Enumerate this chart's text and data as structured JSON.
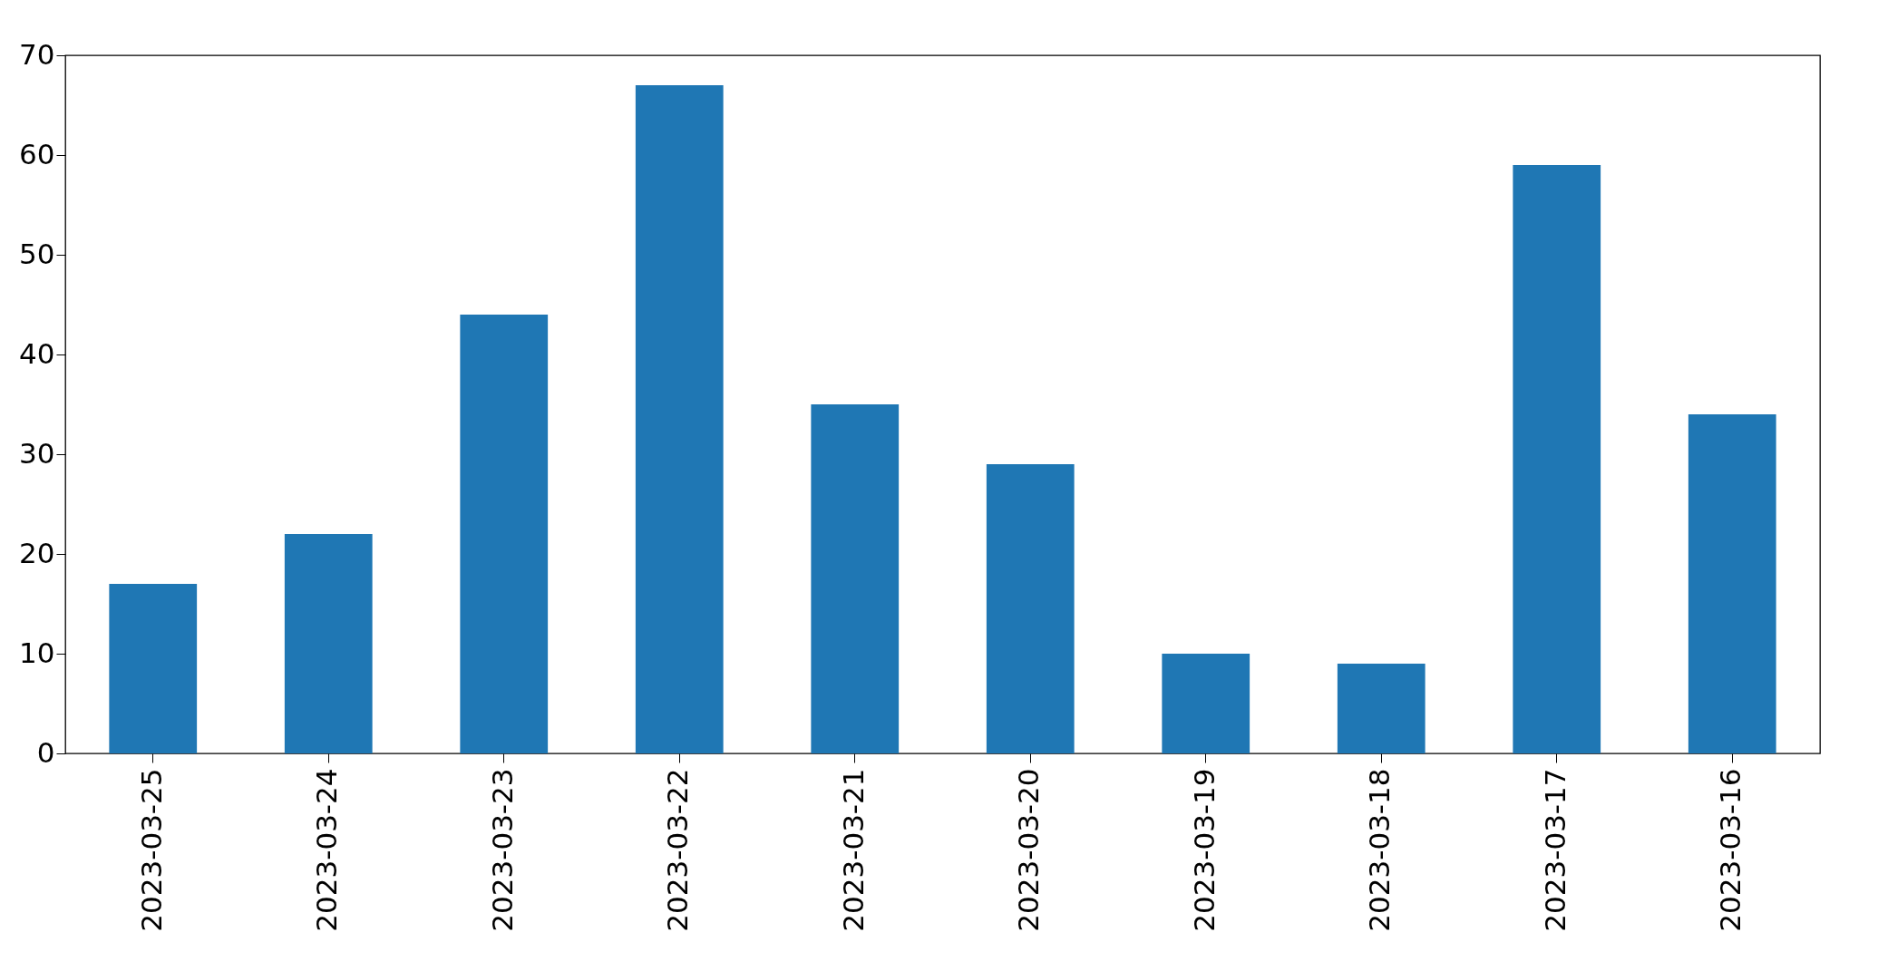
{
  "chart_data": {
    "type": "bar",
    "categories": [
      "2023-03-25",
      "2023-03-24",
      "2023-03-23",
      "2023-03-22",
      "2023-03-21",
      "2023-03-20",
      "2023-03-19",
      "2023-03-18",
      "2023-03-17",
      "2023-03-16"
    ],
    "values": [
      17,
      22,
      44,
      67,
      35,
      29,
      10,
      9,
      59,
      34
    ],
    "color": "#1f77b4",
    "ylim": [
      0,
      70
    ],
    "yticks": [
      0,
      10,
      20,
      30,
      40,
      50,
      60,
      70
    ],
    "grid": false
  }
}
